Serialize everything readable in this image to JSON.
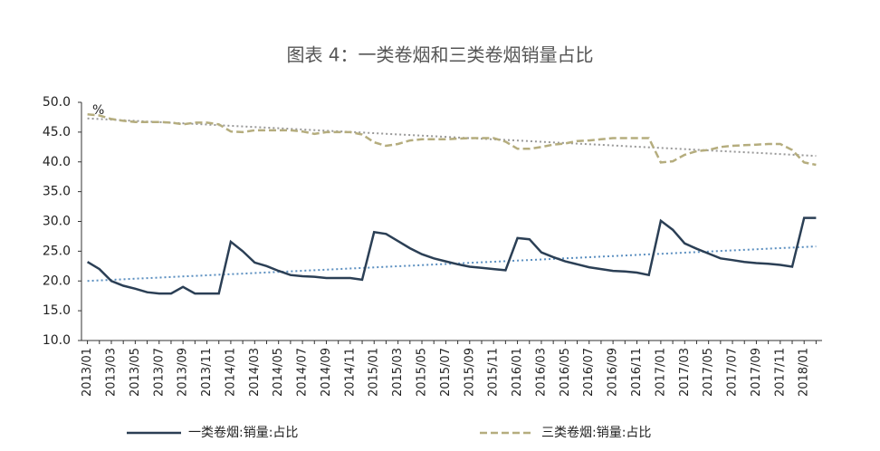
{
  "chart_data": {
    "type": "line",
    "title": "图表 4：一类卷烟和三类卷烟销量占比",
    "y_unit": "%",
    "categories": [
      "2013/01",
      null,
      "2013/03",
      null,
      "2013/05",
      null,
      "2013/07",
      null,
      "2013/09",
      null,
      "2013/11",
      null,
      "2014/01",
      null,
      "2014/03",
      null,
      "2014/05",
      null,
      "2014/07",
      null,
      "2014/09",
      null,
      "2014/11",
      null,
      "2015/01",
      null,
      "2015/03",
      null,
      "2015/05",
      null,
      "2015/07",
      null,
      "2015/09",
      null,
      "2015/11",
      null,
      "2016/01",
      null,
      "2016/03",
      null,
      "2016/05",
      null,
      "2016/07",
      null,
      "2016/09",
      null,
      "2016/11",
      null,
      "2017/01",
      null,
      "2017/03",
      null,
      "2017/05",
      null,
      "2017/07",
      null,
      "2017/09",
      null,
      "2017/11",
      null,
      "2018/01",
      null
    ],
    "series": [
      {
        "name": "一类卷烟:销量:占比",
        "color": "#2b3f55",
        "dash": false,
        "values": [
          23.2,
          22.0,
          20.0,
          19.2,
          18.7,
          18.1,
          17.9,
          17.9,
          19.0,
          17.9,
          17.9,
          17.9,
          26.6,
          25.0,
          23.1,
          22.5,
          21.7,
          21.0,
          20.8,
          20.7,
          20.5,
          20.5,
          20.5,
          20.2,
          28.2,
          27.9,
          26.7,
          25.5,
          24.5,
          23.8,
          23.3,
          22.8,
          22.4,
          22.2,
          22.0,
          21.8,
          27.2,
          27.0,
          24.8,
          24.0,
          23.3,
          22.8,
          22.3,
          22.0,
          21.7,
          21.6,
          21.4,
          21.0,
          30.1,
          28.6,
          26.3,
          25.4,
          24.6,
          23.8,
          23.5,
          23.2,
          23.0,
          22.9,
          22.7,
          22.4,
          30.6,
          30.6
        ]
      },
      {
        "name": "三类卷烟:销量:占比",
        "color": "#b5ad7e",
        "dash": true,
        "values": [
          48.0,
          47.8,
          47.2,
          46.9,
          46.7,
          46.7,
          46.7,
          46.6,
          46.3,
          46.6,
          46.6,
          46.3,
          45.1,
          45.0,
          45.3,
          45.3,
          45.3,
          45.3,
          45.1,
          44.7,
          45.0,
          45.0,
          45.0,
          44.6,
          43.3,
          42.7,
          43.0,
          43.6,
          43.8,
          43.8,
          43.8,
          43.9,
          44.0,
          44.0,
          44.0,
          43.4,
          42.2,
          42.2,
          42.5,
          42.9,
          43.1,
          43.5,
          43.6,
          43.8,
          44.0,
          44.0,
          44.0,
          44.0,
          39.9,
          40.1,
          41.2,
          41.8,
          42.0,
          42.5,
          42.7,
          42.8,
          42.9,
          43.0,
          43.0,
          42.0,
          39.9,
          39.5
        ]
      }
    ],
    "trendlines": [
      {
        "color": "#5b8fc0",
        "values": [
          20.0,
          25.8
        ]
      },
      {
        "color": "#999999",
        "values": [
          47.3,
          41.0
        ]
      }
    ],
    "ylim": [
      10,
      50
    ],
    "yticks": [
      {
        "value": 10,
        "label": "10.0"
      },
      {
        "value": 15,
        "label": "15.0"
      },
      {
        "value": 20,
        "label": "20.0"
      },
      {
        "value": 25,
        "label": "25.0"
      },
      {
        "value": 30,
        "label": "30.0"
      },
      {
        "value": 35,
        "label": "35.0"
      },
      {
        "value": 40,
        "label": "40.0"
      },
      {
        "value": 45,
        "label": "45.0"
      },
      {
        "value": 50,
        "label": "50.0"
      }
    ]
  }
}
